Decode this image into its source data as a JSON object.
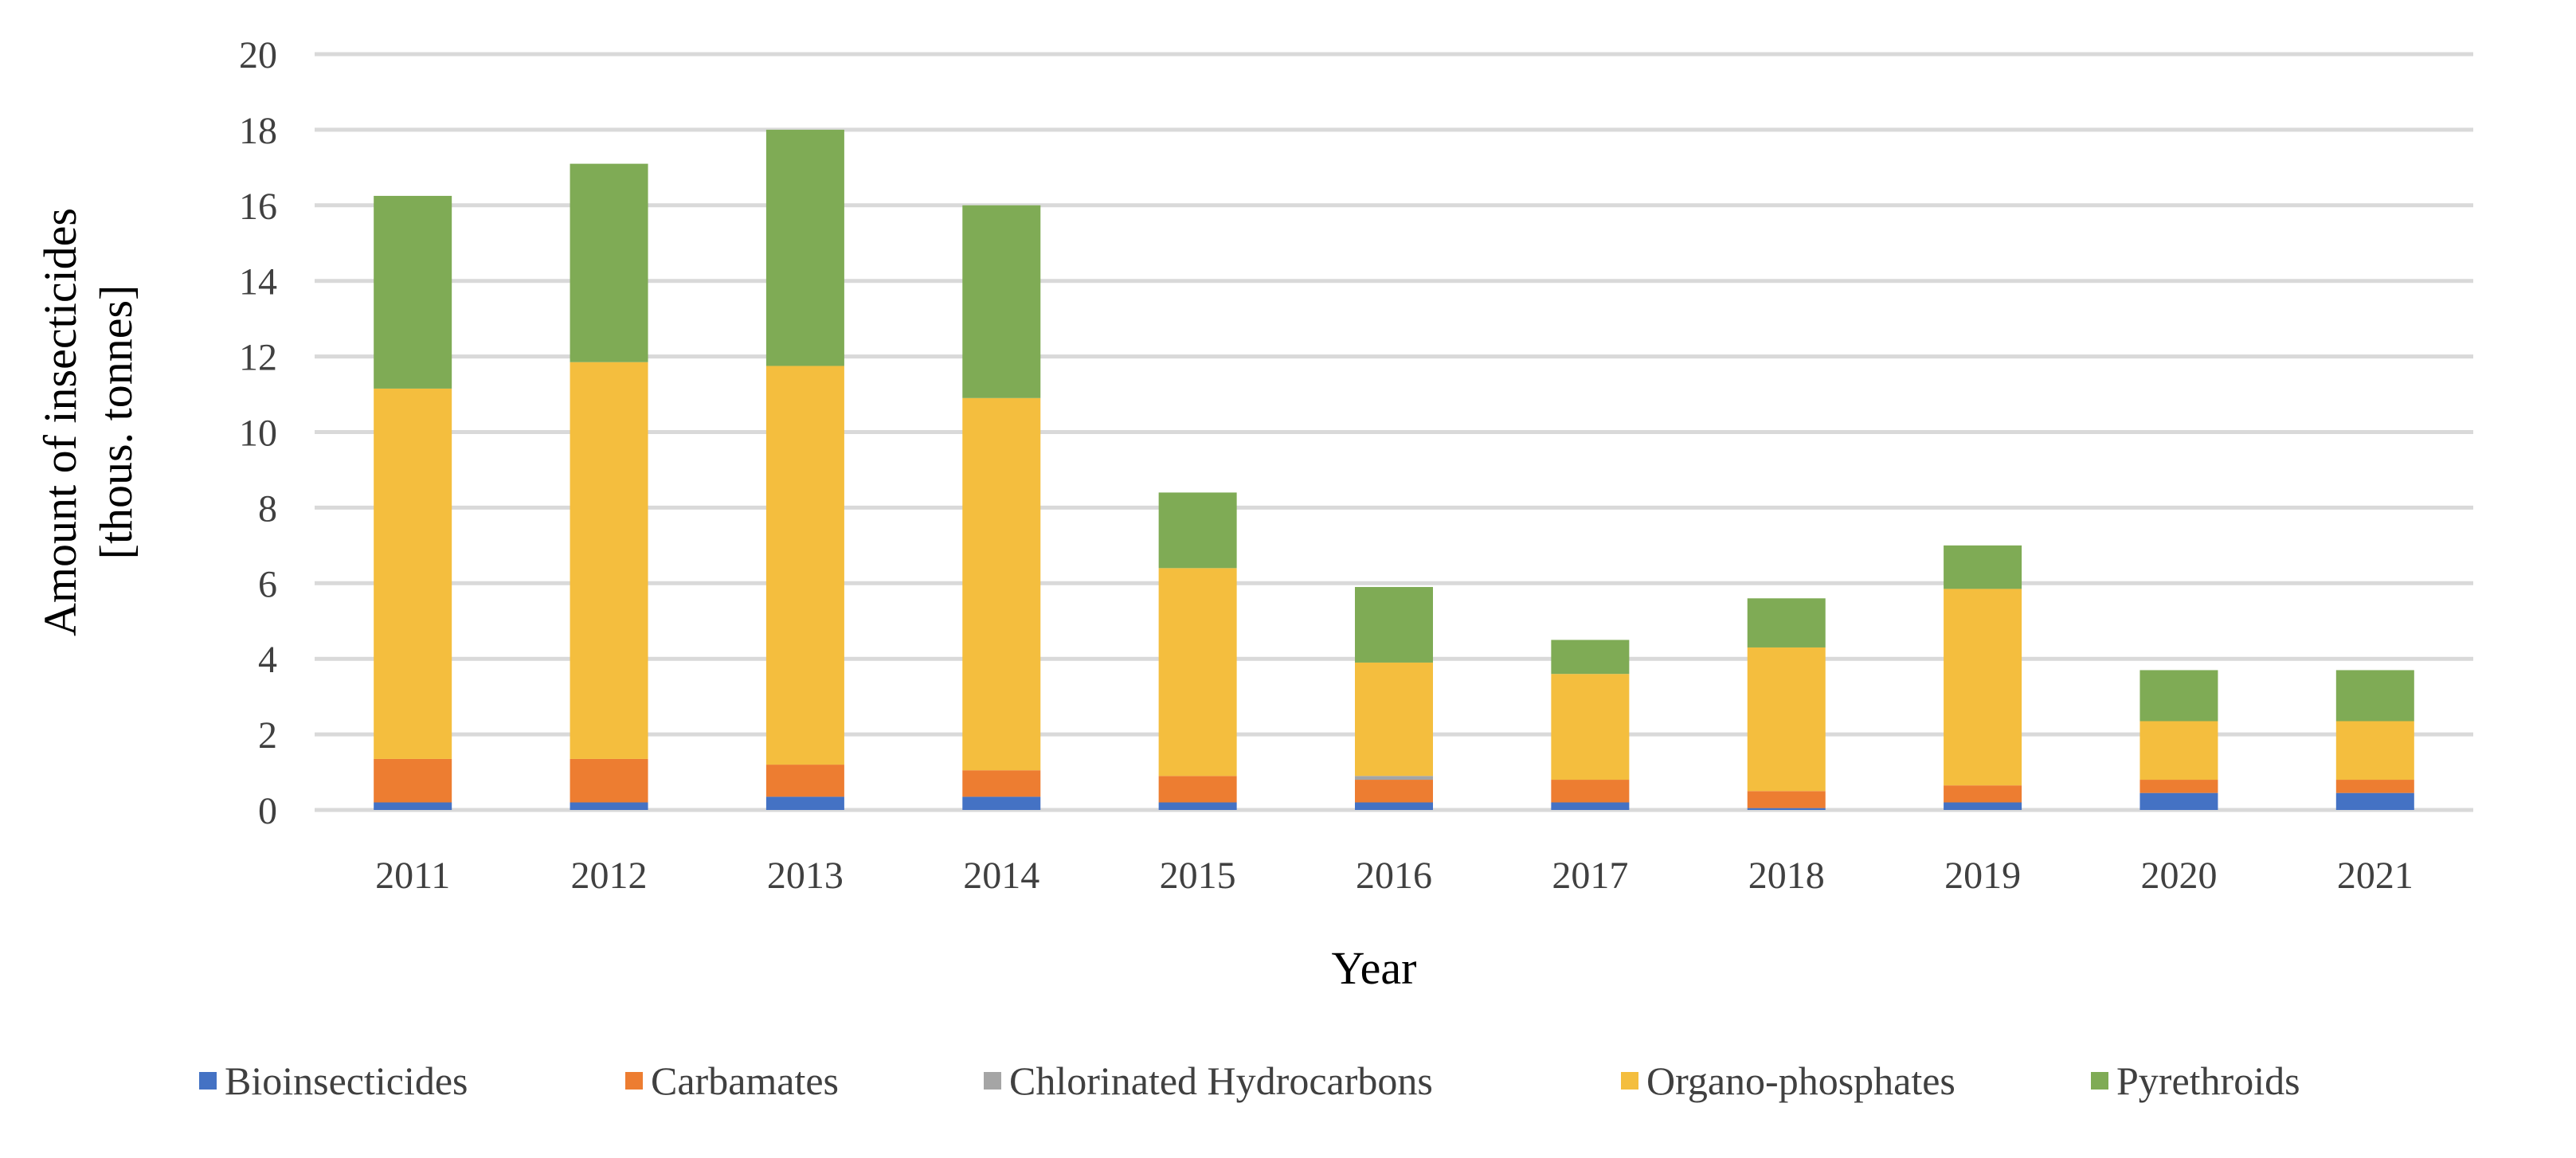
{
  "chart_data": {
    "type": "bar",
    "stacked": true,
    "title": "",
    "xlabel": "Year",
    "ylabel": [
      "Amount of insecticides",
      "[thous. tonnes]"
    ],
    "ylim": [
      0,
      20
    ],
    "yticks": [
      0,
      2,
      4,
      6,
      8,
      10,
      12,
      14,
      16,
      18,
      20
    ],
    "grid": true,
    "legend_position": "bottom",
    "categories": [
      "2011",
      "2012",
      "2013",
      "2014",
      "2015",
      "2016",
      "2017",
      "2018",
      "2019",
      "2020",
      "2021"
    ],
    "series": [
      {
        "name": "Bioinsecticides",
        "color": "#4472C4",
        "values": [
          0.2,
          0.2,
          0.35,
          0.35,
          0.2,
          0.2,
          0.2,
          0.05,
          0.2,
          0.45,
          0.45
        ]
      },
      {
        "name": "Carbamates",
        "color": "#ED7D31",
        "values": [
          1.15,
          1.15,
          0.85,
          0.7,
          0.7,
          0.6,
          0.6,
          0.45,
          0.45,
          0.35,
          0.35
        ]
      },
      {
        "name": "Chlorinated Hydrocarbons",
        "color": "#A5A5A5",
        "values": [
          0,
          0,
          0,
          0,
          0,
          0.1,
          0,
          0,
          0,
          0,
          0
        ]
      },
      {
        "name": "Organo-phosphates",
        "color": "#F4BE3E",
        "values": [
          9.8,
          10.5,
          10.55,
          9.85,
          5.5,
          3.0,
          2.8,
          3.8,
          5.2,
          1.55,
          1.55
        ]
      },
      {
        "name": "Pyrethroids",
        "color": "#7FAB55",
        "values": [
          5.1,
          5.25,
          6.25,
          5.1,
          2.0,
          2.0,
          0.9,
          1.3,
          1.15,
          1.35,
          1.35
        ]
      }
    ]
  }
}
